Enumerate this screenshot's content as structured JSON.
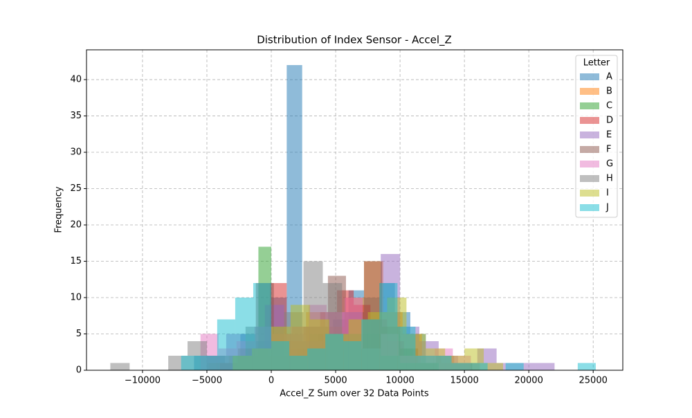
{
  "chart_data": {
    "type": "histogram",
    "title": "Distribution of Index Sensor - Accel_Z",
    "x_label": "Accel_Z Sum over 32 Data Points",
    "y_label": "Frequency",
    "legend_title": "Letter",
    "legend_position": "upper right",
    "grid": true,
    "alpha": 0.5,
    "xlim": [
      -14350,
      27300
    ],
    "ylim": [
      0,
      44.1
    ],
    "xticks": [
      {
        "value": -10000,
        "label": "−10000"
      },
      {
        "value": -5000,
        "label": "−5000"
      },
      0,
      5000,
      10000,
      15000,
      20000,
      25000
    ],
    "yticks": [
      0,
      5,
      10,
      15,
      20,
      25,
      30,
      35,
      40
    ],
    "series": [
      {
        "name": "A",
        "color": "#1f77b4",
        "bins": [
          -6000,
          -4800,
          -3600,
          -2400,
          -1200,
          0,
          1200,
          2400,
          3600,
          4800,
          6000,
          7200,
          8400,
          9600,
          10800,
          12000
        ],
        "values": [
          2,
          2,
          1,
          5,
          4,
          10,
          42,
          4,
          5,
          7,
          11,
          10,
          12,
          8,
          5
        ]
      },
      {
        "name": "B",
        "color": "#ff7f0e",
        "bins": [
          -4800,
          -3300,
          -1800,
          -300,
          1200,
          2700,
          4200,
          5700,
          7200,
          8700,
          10200,
          11700,
          13200,
          14700,
          16200
        ],
        "values": [
          1,
          2,
          3,
          2,
          3,
          8,
          6,
          10,
          15,
          8,
          5,
          2,
          1,
          1
        ]
      },
      {
        "name": "C",
        "color": "#2ca02c",
        "bins": [
          -5000,
          -4000,
          -3000,
          -2000,
          -1000,
          0,
          1000,
          2000,
          3000,
          4000,
          5000,
          6000,
          7000,
          8000,
          9000,
          10000,
          11000,
          12000,
          13000
        ],
        "values": [
          1,
          1,
          2,
          2,
          17,
          5,
          2,
          3,
          5,
          5,
          5,
          5,
          5,
          5,
          5,
          3,
          2,
          1
        ]
      },
      {
        "name": "D",
        "color": "#d62728",
        "bins": [
          -4000,
          -2700,
          -1400,
          -100,
          1200,
          2500,
          3800,
          5100,
          6400,
          7700,
          9000,
          10300,
          11600,
          12900
        ],
        "values": [
          1,
          2,
          3,
          12,
          4,
          6,
          8,
          11,
          9,
          7,
          4,
          2,
          1
        ]
      },
      {
        "name": "E",
        "color": "#9467bd",
        "bins": [
          -5000,
          -3500,
          -2000,
          -500,
          1000,
          2500,
          4000,
          5500,
          7000,
          8500,
          10000,
          11500,
          13000,
          14500,
          16000,
          17500,
          19000,
          20500,
          22000
        ],
        "values": [
          2,
          5,
          3,
          9,
          5,
          4,
          5,
          8,
          7,
          16,
          6,
          4,
          2,
          1,
          3,
          1,
          1,
          1
        ]
      },
      {
        "name": "F",
        "color": "#8c564b",
        "bins": [
          -4000,
          -2600,
          -1200,
          200,
          1600,
          3000,
          4400,
          5800,
          7200,
          8600,
          10000,
          11400,
          12800,
          14200,
          15600
        ],
        "values": [
          1,
          3,
          12,
          5,
          6,
          6,
          13,
          8,
          15,
          6,
          3,
          1,
          2,
          1
        ]
      },
      {
        "name": "G",
        "color": "#e377c2",
        "bins": [
          -5500,
          -4100,
          -2700,
          -1300,
          100,
          1500,
          2900,
          4300,
          5700,
          7100,
          8500,
          9900,
          11300,
          12700,
          14100,
          15500
        ],
        "values": [
          5,
          3,
          4,
          6,
          5,
          6,
          9,
          8,
          10,
          3,
          5,
          2,
          2,
          3,
          2
        ]
      },
      {
        "name": "H",
        "color": "#7f7f7f",
        "bins": [
          -12500,
          -11000,
          -9500,
          -8000,
          -6500,
          -5000,
          -3500,
          -2000,
          -500,
          1000,
          2500,
          4000,
          5500,
          7000,
          8500,
          10000,
          11500,
          13000
        ],
        "values": [
          1,
          0,
          0,
          2,
          4,
          2,
          2,
          6,
          6,
          8,
          15,
          12,
          5,
          3,
          2,
          1,
          1
        ]
      },
      {
        "name": "I",
        "color": "#bcbd22",
        "bins": [
          -3000,
          -1500,
          0,
          1500,
          3000,
          4500,
          6000,
          7500,
          9000,
          10500,
          12000,
          13500,
          15000,
          16500,
          18000
        ],
        "values": [
          2,
          3,
          6,
          9,
          7,
          5,
          7,
          8,
          10,
          5,
          3,
          2,
          3,
          1
        ]
      },
      {
        "name": "J",
        "color": "#17becf",
        "bins": [
          -7000,
          -5600,
          -4200,
          -2800,
          -1400,
          0,
          1400,
          2800,
          4200,
          5600,
          7000,
          8400,
          9800,
          11200,
          12600,
          14000,
          15400,
          16800,
          18200,
          19600,
          21000,
          22400,
          23800,
          25200
        ],
        "values": [
          2,
          2,
          7,
          10,
          12,
          4,
          2,
          3,
          5,
          4,
          7,
          12,
          6,
          2,
          2,
          1,
          1,
          0,
          1,
          0,
          0,
          0,
          1
        ]
      }
    ]
  }
}
